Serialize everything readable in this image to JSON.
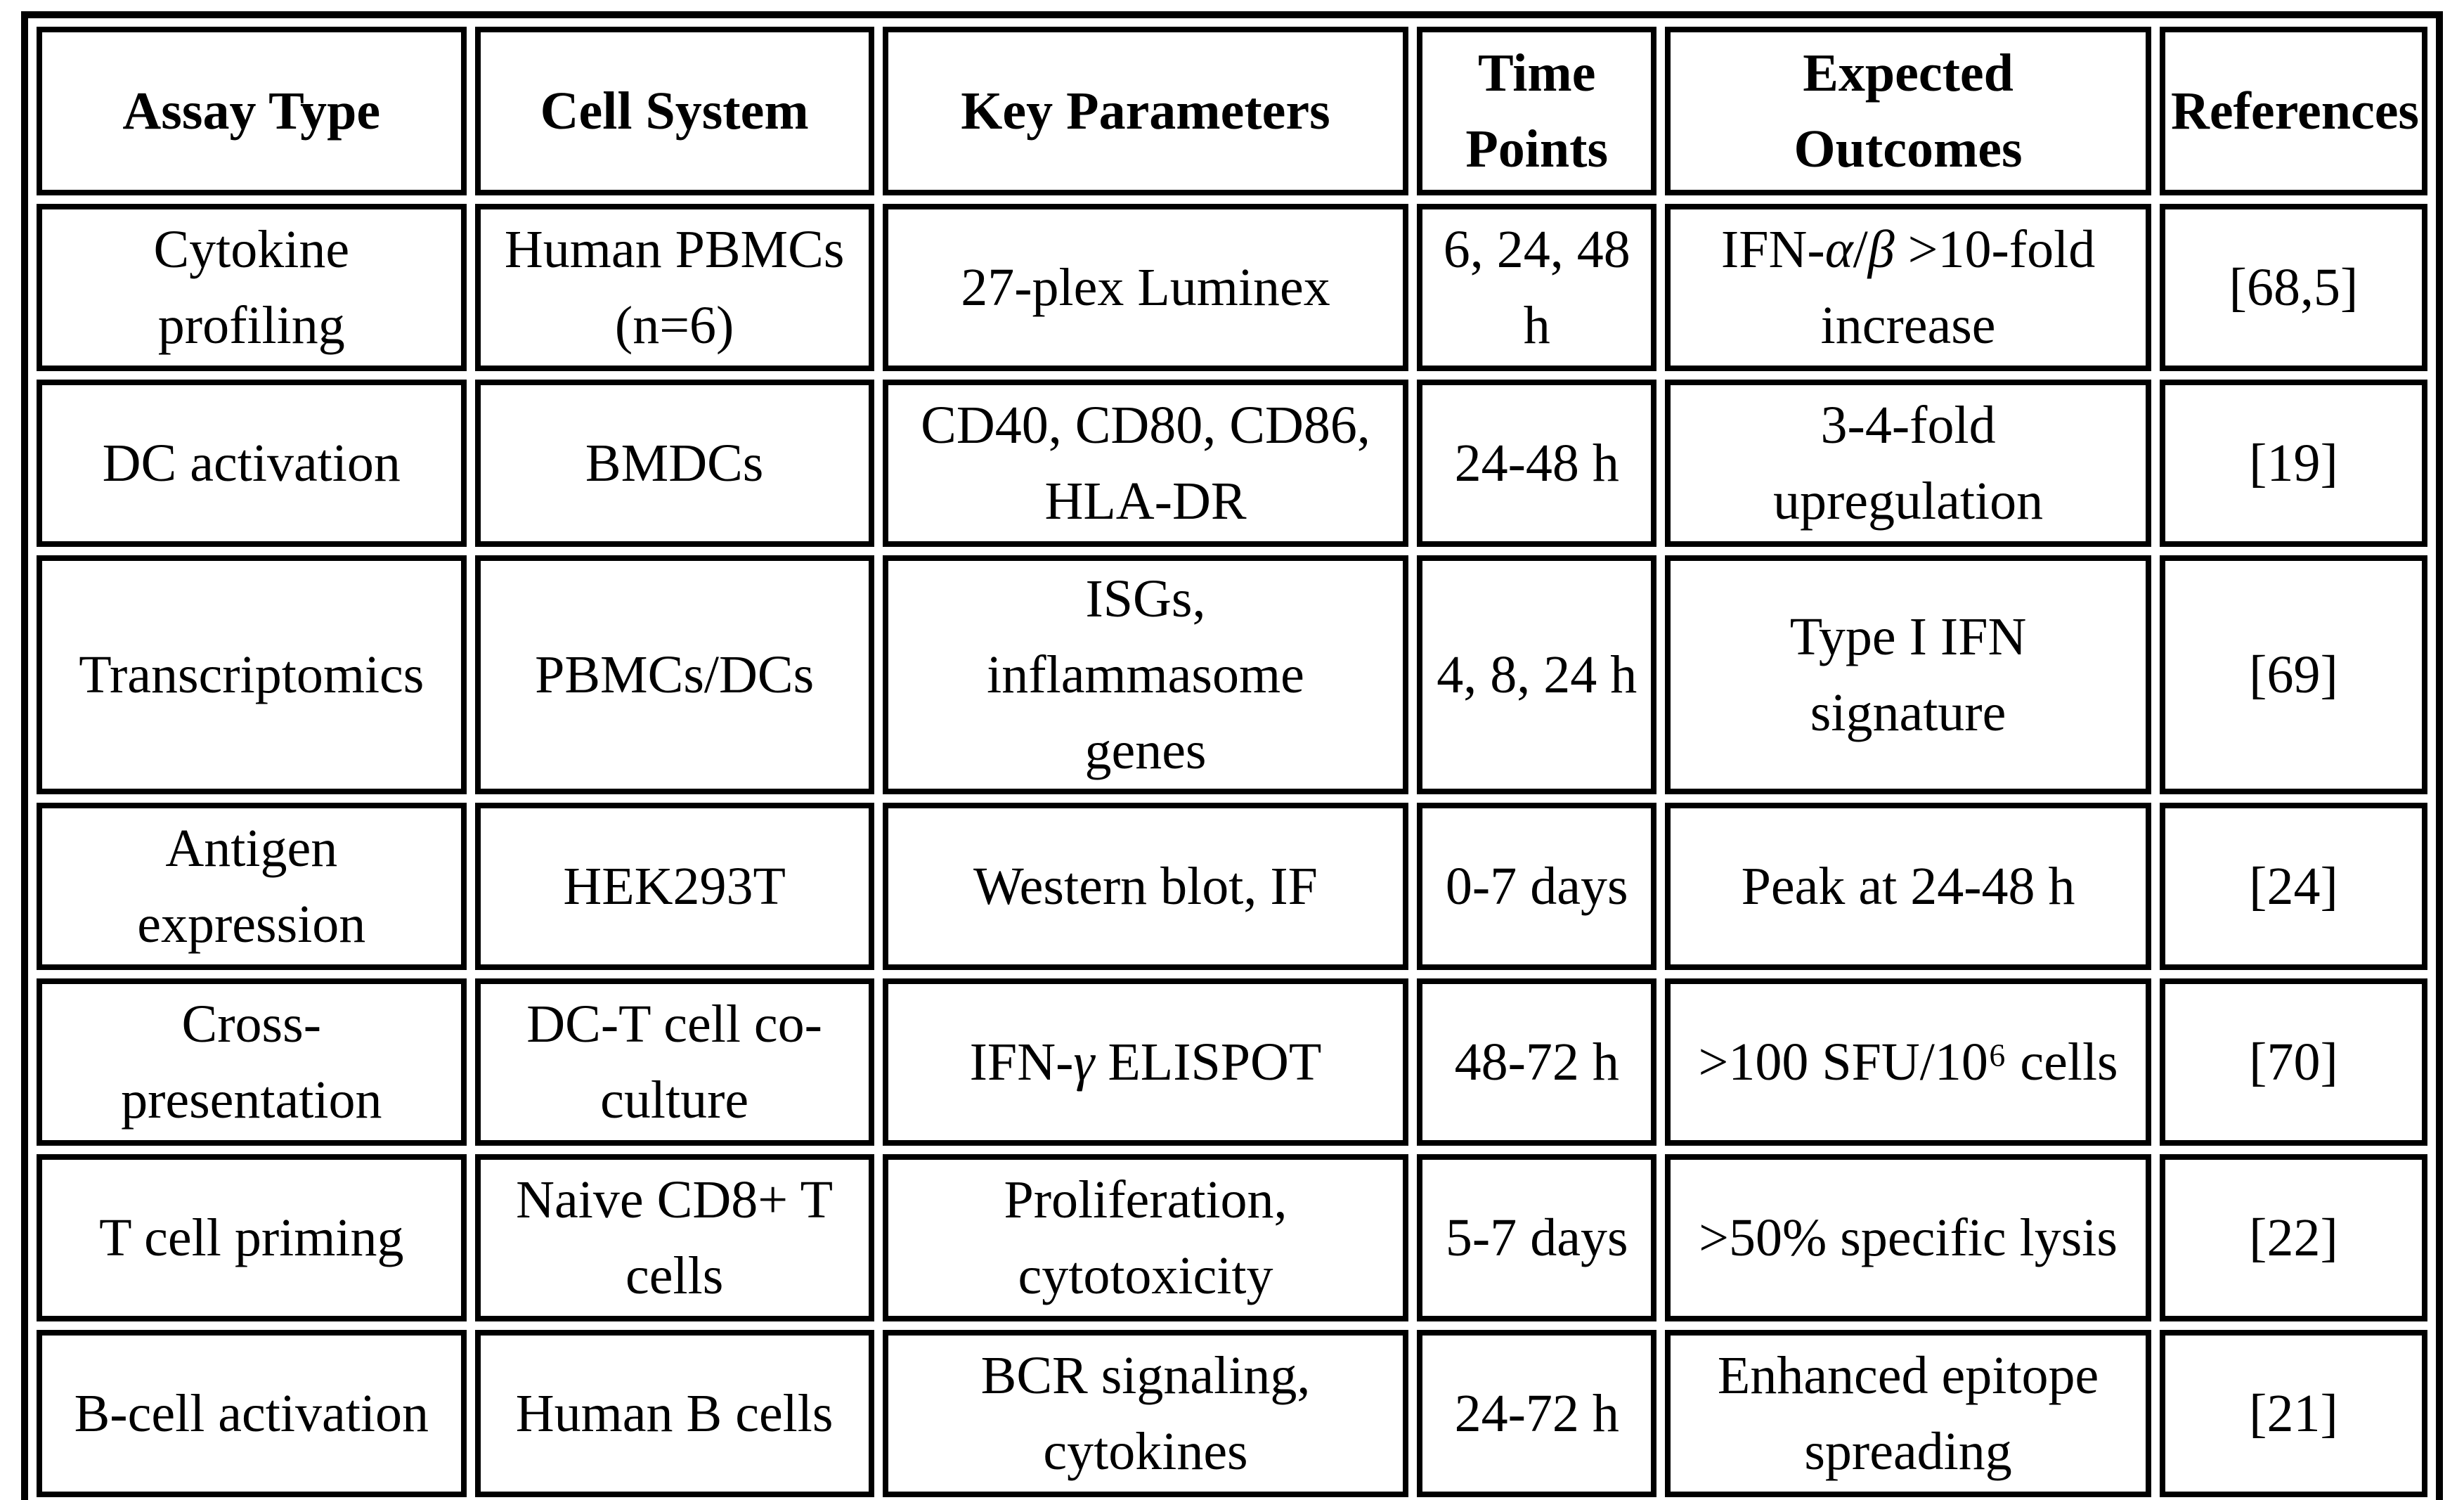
{
  "page": {
    "background_color": "#ffffff",
    "border_color": "#000000",
    "text_color": "#000000"
  },
  "table": {
    "headers": [
      "Assay Type",
      "Cell System",
      "Key Parameters",
      "Time\nPoints",
      "Expected\nOutcomes",
      "References"
    ],
    "rows": [
      [
        "Cytokine\nprofiling",
        "Human PBMCs\n(n=6)",
        "27-plex Luminex",
        "6, 24, 48\nh",
        "IFN-α/β >10-fold\nincrease",
        "[68,5]"
      ],
      [
        "DC activation",
        "BMDCs",
        "CD40, CD80, CD86,\nHLA-DR",
        "24-48 h",
        "3-4-fold\nupregulation",
        "[19]"
      ],
      [
        "Transcriptomics",
        "PBMCs/DCs",
        "ISGs,\ninflammasome\ngenes",
        "4, 8, 24 h",
        "Type I IFN\nsignature",
        "[69]"
      ],
      [
        "Antigen\nexpression",
        "HEK293T",
        "Western blot, IF",
        "0-7 days",
        "Peak at 24-48 h",
        "[24]"
      ],
      [
        "Cross-\npresentation",
        "DC-T cell co-\nculture",
        "IFN-γ ELISPOT",
        "48-72 h",
        ">100 SFU/10⁶ cells",
        "[70]"
      ],
      [
        "T cell priming",
        "Naive CD8+ T\ncells",
        "Proliferation,\ncytotoxicity",
        "5-7 days",
        ">50% specific lysis",
        "[22]"
      ],
      [
        "B-cell activation",
        "Human B cells",
        "BCR signaling,\ncytokines",
        "24-72 h",
        "Enhanced epitope\nspreading",
        "[21]"
      ]
    ]
  }
}
